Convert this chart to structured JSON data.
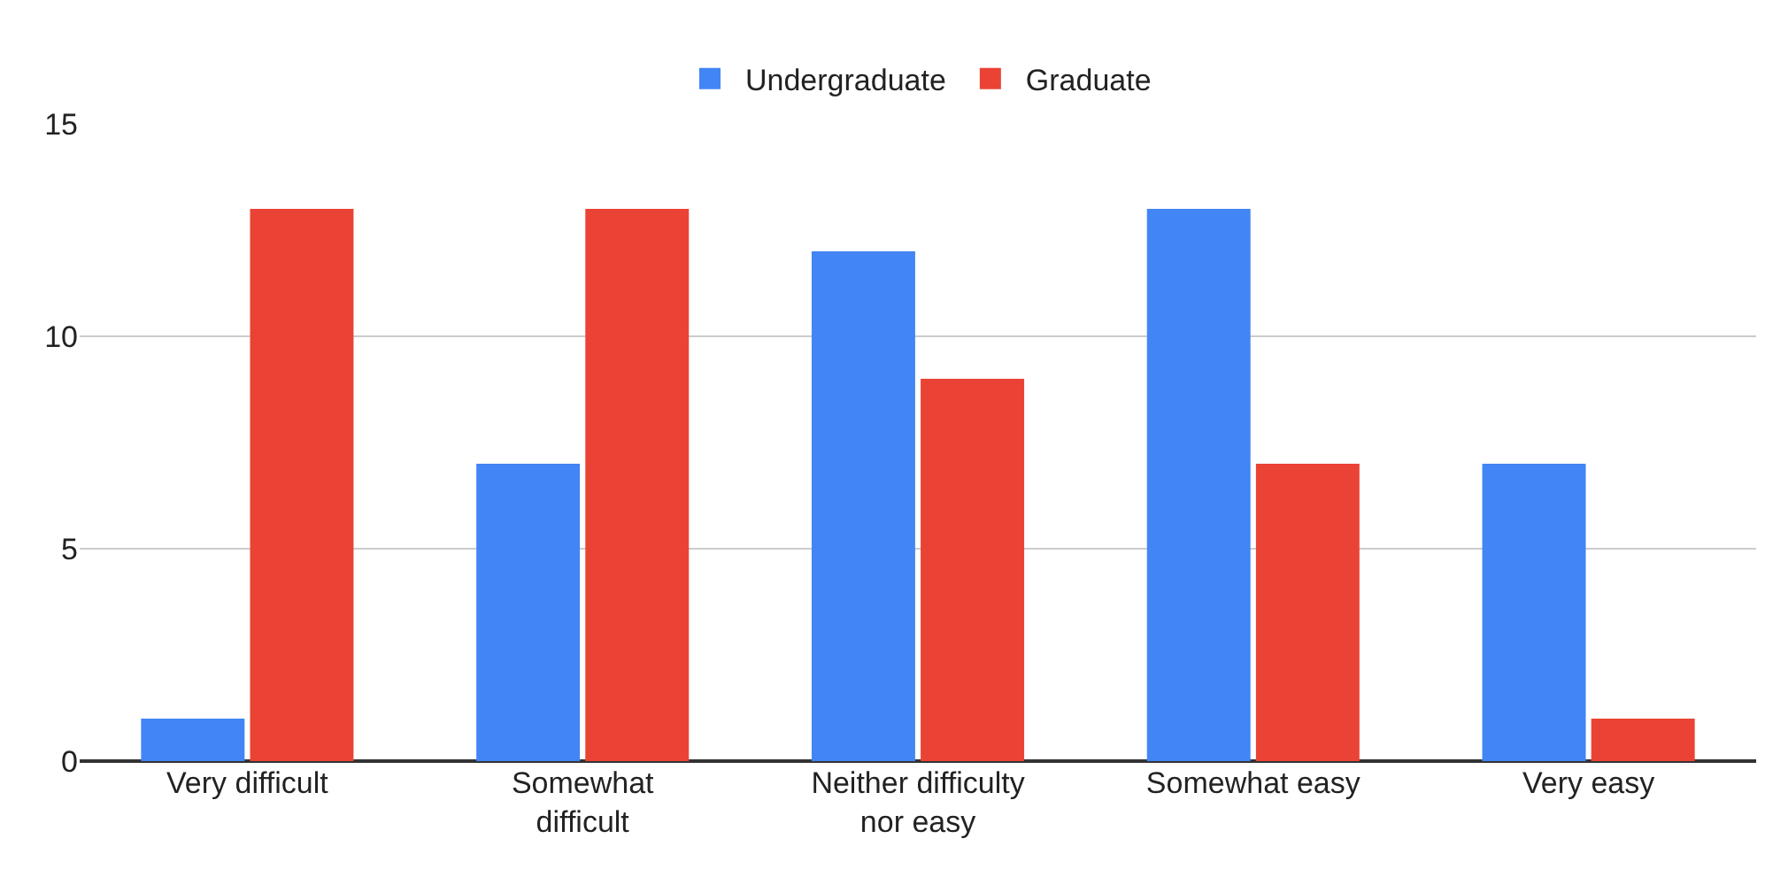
{
  "chart_data": {
    "type": "bar",
    "categories": [
      "Very difficult",
      "Somewhat difficult",
      "Neither difficulty nor easy",
      "Somewhat easy",
      "Very easy"
    ],
    "series": [
      {
        "name": "Undergraduate",
        "color": "#4285f4",
        "values": [
          1,
          7,
          12,
          13,
          7
        ]
      },
      {
        "name": "Graduate",
        "color": "#ea4335",
        "values": [
          13,
          13,
          9,
          7,
          1
        ]
      }
    ],
    "ylim": [
      0,
      15
    ],
    "yticks": [
      0,
      5,
      10,
      15
    ],
    "grid": "y",
    "legend": "top"
  }
}
